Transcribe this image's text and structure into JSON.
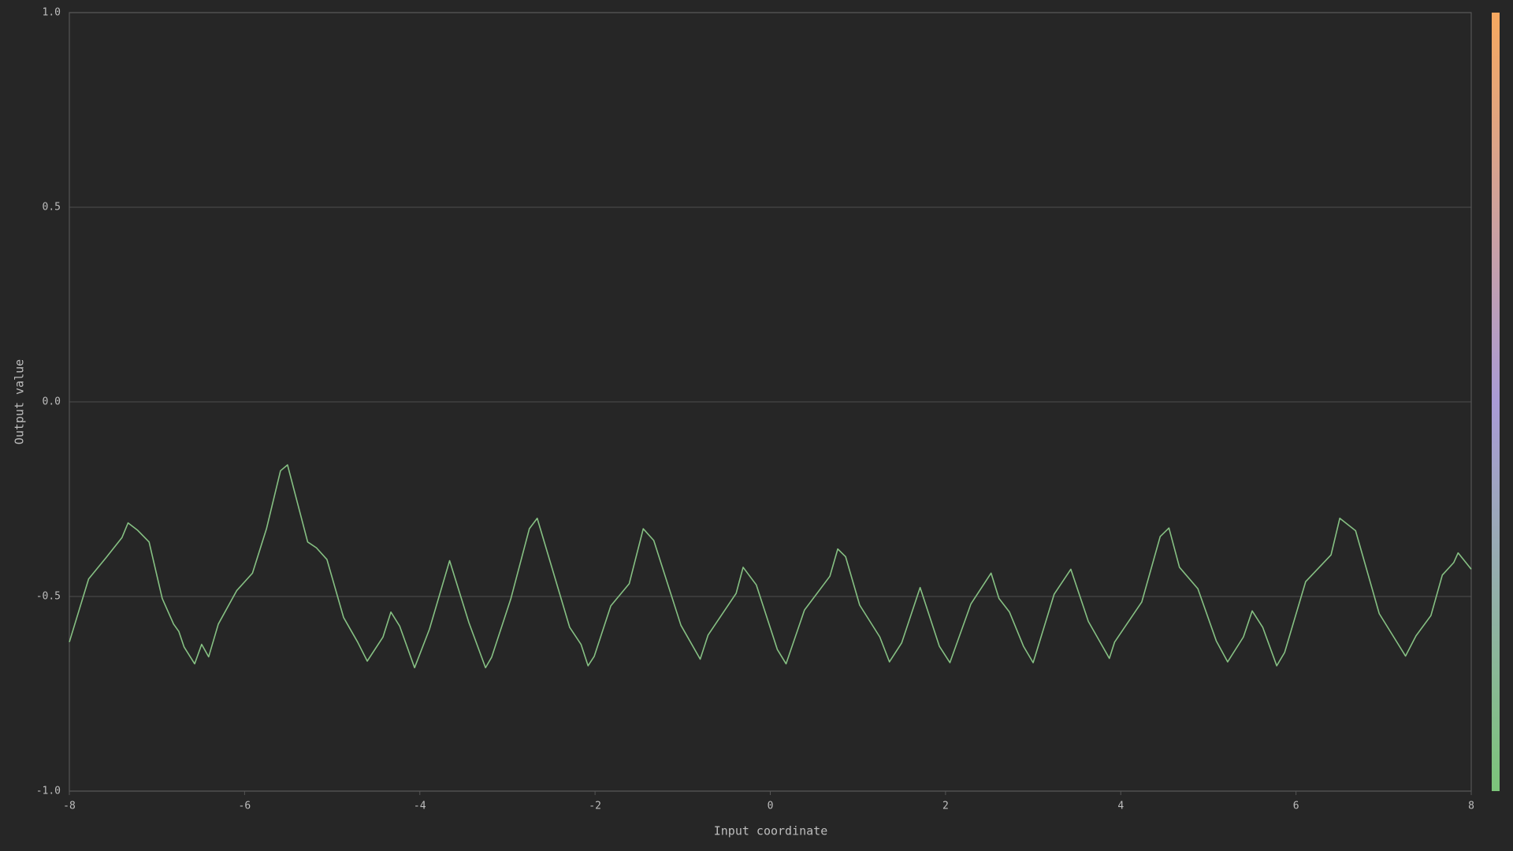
{
  "chart_data": {
    "type": "line",
    "x_label": "Input coordinate",
    "y_label": "Output value",
    "xlim": [
      -8,
      8
    ],
    "ylim": [
      -1.0,
      1.0
    ],
    "xticks": [
      -8,
      -6,
      -4,
      -2,
      0,
      2,
      4,
      6,
      8
    ],
    "yticks": [
      {
        "value": -1.0,
        "label": "-1.0"
      },
      {
        "value": -0.5,
        "label": "-0.5"
      },
      {
        "value": 0,
        "label": "0.0"
      },
      {
        "value": 0.5,
        "label": "0.5"
      },
      {
        "value": 1.0,
        "label": "1.0"
      }
    ],
    "grid": true,
    "color": "#86c083",
    "x": [
      -8,
      -7.78,
      -7.58,
      -7.4,
      -7.33,
      -7.22,
      -7.09,
      -6.94,
      -6.81,
      -6.75,
      -6.69,
      -6.57,
      -6.49,
      -6.41,
      -6.3,
      -6.09,
      -5.91,
      -5.75,
      -5.59,
      -5.51,
      -5.28,
      -5.18,
      -5.06,
      -4.87,
      -4.71,
      -4.6,
      -4.42,
      -4.33,
      -4.23,
      -4.06,
      -3.89,
      -3.66,
      -3.44,
      -3.25,
      -3.18,
      -2.96,
      -2.75,
      -2.66,
      -2.29,
      -2.16,
      -2.08,
      -2.01,
      -1.82,
      -1.61,
      -1.45,
      -1.33,
      -1.02,
      -0.8,
      -0.71,
      -0.39,
      -0.31,
      -0.16,
      0.08,
      0.18,
      0.39,
      0.68,
      0.77,
      0.86,
      1.02,
      1.25,
      1.36,
      1.5,
      1.71,
      1.93,
      2.05,
      2.29,
      2.52,
      2.61,
      2.73,
      2.89,
      3.0,
      3.24,
      3.43,
      3.63,
      3.87,
      3.93,
      4.24,
      4.45,
      4.55,
      4.67,
      4.88,
      5.09,
      5.22,
      5.4,
      5.5,
      5.62,
      5.78,
      5.87,
      6.11,
      6.4,
      6.5,
      6.68,
      6.95,
      7.25,
      7.37,
      7.54,
      7.67,
      7.8,
      7.85,
      8.0
    ],
    "values": [
      -0.617,
      -0.455,
      -0.4,
      -0.349,
      -0.311,
      -0.33,
      -0.36,
      -0.505,
      -0.571,
      -0.59,
      -0.63,
      -0.673,
      -0.623,
      -0.655,
      -0.571,
      -0.485,
      -0.44,
      -0.326,
      -0.177,
      -0.162,
      -0.36,
      -0.375,
      -0.405,
      -0.554,
      -0.617,
      -0.666,
      -0.604,
      -0.54,
      -0.576,
      -0.683,
      -0.584,
      -0.408,
      -0.567,
      -0.683,
      -0.656,
      -0.505,
      -0.326,
      -0.299,
      -0.579,
      -0.623,
      -0.678,
      -0.654,
      -0.524,
      -0.467,
      -0.326,
      -0.356,
      -0.574,
      -0.661,
      -0.599,
      -0.492,
      -0.425,
      -0.47,
      -0.636,
      -0.673,
      -0.535,
      -0.448,
      -0.378,
      -0.398,
      -0.522,
      -0.604,
      -0.668,
      -0.619,
      -0.477,
      -0.628,
      -0.67,
      -0.519,
      -0.44,
      -0.505,
      -0.54,
      -0.628,
      -0.67,
      -0.494,
      -0.43,
      -0.564,
      -0.659,
      -0.617,
      -0.514,
      -0.346,
      -0.324,
      -0.425,
      -0.48,
      -0.614,
      -0.668,
      -0.604,
      -0.537,
      -0.579,
      -0.678,
      -0.644,
      -0.462,
      -0.393,
      -0.299,
      -0.331,
      -0.544,
      -0.653,
      -0.601,
      -0.549,
      -0.445,
      -0.413,
      -0.388,
      -0.43
    ]
  }
}
